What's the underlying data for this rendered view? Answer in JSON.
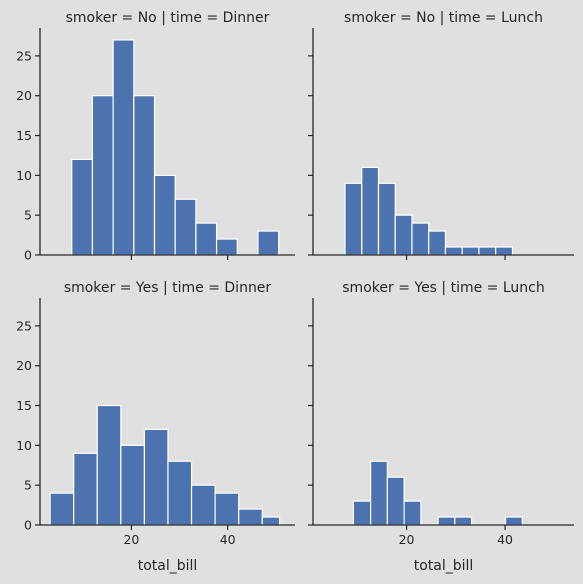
{
  "chart_data": {
    "type": "bar",
    "layout": "facet-grid-2x2",
    "shared_x": true,
    "shared_y": true,
    "xlabel": "total_bill",
    "ylabel": "",
    "xlim": [
      1,
      54
    ],
    "ylim": [
      0,
      28.5
    ],
    "xticks": [
      20,
      40
    ],
    "yticks": [
      0,
      5,
      10,
      15,
      20,
      25
    ],
    "bar_color": "#4c72b0",
    "bar_edge_color": "#ffffff",
    "background_color": "#e0e0e0",
    "grid": false,
    "facets": [
      {
        "title": "smoker = No | time = Dinner",
        "bins": [
          {
            "x0": 7.6,
            "x1": 11.9,
            "count": 12
          },
          {
            "x0": 11.9,
            "x1": 16.2,
            "count": 20
          },
          {
            "x0": 16.2,
            "x1": 20.5,
            "count": 27
          },
          {
            "x0": 20.5,
            "x1": 24.8,
            "count": 20
          },
          {
            "x0": 24.8,
            "x1": 29.1,
            "count": 10
          },
          {
            "x0": 29.1,
            "x1": 33.4,
            "count": 7
          },
          {
            "x0": 33.4,
            "x1": 37.7,
            "count": 4
          },
          {
            "x0": 37.7,
            "x1": 42.0,
            "count": 2
          },
          {
            "x0": 42.0,
            "x1": 46.3,
            "count": 0
          },
          {
            "x0": 46.3,
            "x1": 50.6,
            "count": 3
          }
        ]
      },
      {
        "title": "smoker = No | time = Lunch",
        "bins": [
          {
            "x0": 7.5,
            "x1": 10.9,
            "count": 9
          },
          {
            "x0": 10.9,
            "x1": 14.3,
            "count": 11
          },
          {
            "x0": 14.3,
            "x1": 17.7,
            "count": 9
          },
          {
            "x0": 17.7,
            "x1": 21.1,
            "count": 5
          },
          {
            "x0": 21.1,
            "x1": 24.5,
            "count": 4
          },
          {
            "x0": 24.5,
            "x1": 27.9,
            "count": 3
          },
          {
            "x0": 27.9,
            "x1": 31.3,
            "count": 1
          },
          {
            "x0": 31.3,
            "x1": 34.7,
            "count": 1
          },
          {
            "x0": 34.7,
            "x1": 38.1,
            "count": 1
          },
          {
            "x0": 38.1,
            "x1": 41.5,
            "count": 1
          }
        ]
      },
      {
        "title": "smoker = Yes | time = Dinner",
        "bins": [
          {
            "x0": 3.1,
            "x1": 8.0,
            "count": 4
          },
          {
            "x0": 8.0,
            "x1": 12.9,
            "count": 9
          },
          {
            "x0": 12.9,
            "x1": 17.8,
            "count": 15
          },
          {
            "x0": 17.8,
            "x1": 22.7,
            "count": 10
          },
          {
            "x0": 22.7,
            "x1": 27.6,
            "count": 12
          },
          {
            "x0": 27.6,
            "x1": 32.5,
            "count": 8
          },
          {
            "x0": 32.5,
            "x1": 37.4,
            "count": 5
          },
          {
            "x0": 37.4,
            "x1": 42.3,
            "count": 4
          },
          {
            "x0": 42.3,
            "x1": 47.2,
            "count": 2
          },
          {
            "x0": 47.2,
            "x1": 50.8,
            "count": 1
          }
        ]
      },
      {
        "title": "smoker = Yes | time = Lunch",
        "bins": [
          {
            "x0": 9.2,
            "x1": 12.7,
            "count": 3
          },
          {
            "x0": 12.7,
            "x1": 16.1,
            "count": 8
          },
          {
            "x0": 16.1,
            "x1": 19.5,
            "count": 6
          },
          {
            "x0": 19.5,
            "x1": 22.9,
            "count": 3
          },
          {
            "x0": 22.9,
            "x1": 26.4,
            "count": 0
          },
          {
            "x0": 26.4,
            "x1": 29.8,
            "count": 1
          },
          {
            "x0": 29.8,
            "x1": 33.2,
            "count": 1
          },
          {
            "x0": 33.2,
            "x1": 36.6,
            "count": 0
          },
          {
            "x0": 36.6,
            "x1": 40.1,
            "count": 0
          },
          {
            "x0": 40.1,
            "x1": 43.5,
            "count": 1
          }
        ]
      }
    ]
  }
}
